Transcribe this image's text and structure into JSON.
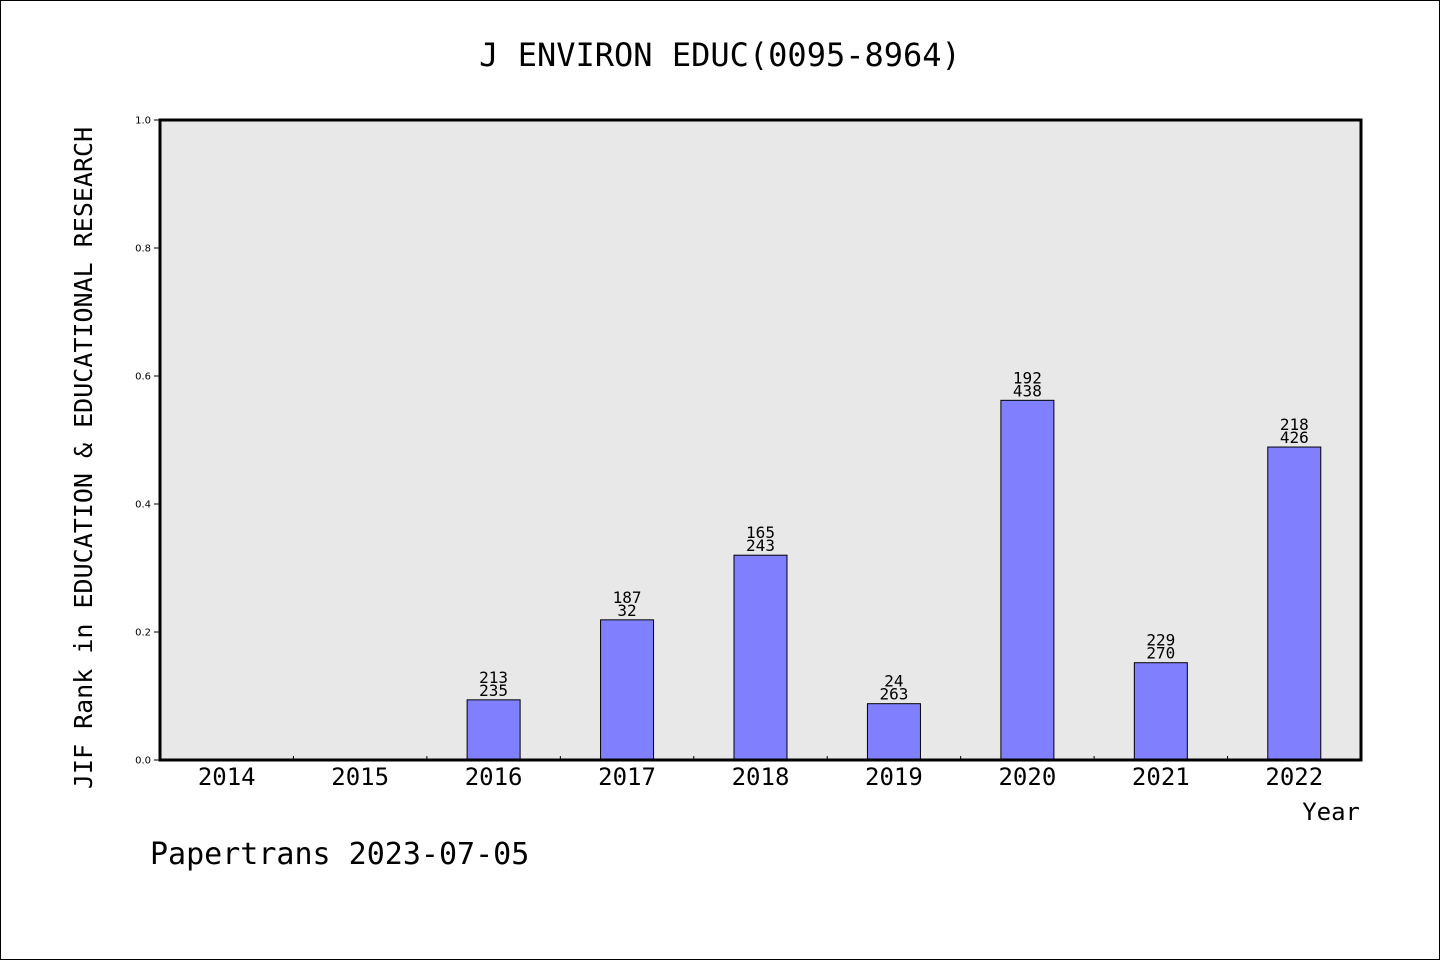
{
  "chart_data": {
    "type": "bar",
    "title": "J ENVIRON EDUC(0095-8964)",
    "xlabel": "Year",
    "ylabel": "JIF Rank in EDUCATION & EDUCATIONAL RESEARCH",
    "categories": [
      "2014",
      "2015",
      "2016",
      "2017",
      "2018",
      "2019",
      "2020",
      "2021",
      "2022"
    ],
    "values": [
      null,
      null,
      0.094,
      0.219,
      0.32,
      0.088,
      0.562,
      0.152,
      0.489
    ],
    "rank_labels": [
      "",
      "",
      "213",
      "187",
      "165",
      "24",
      "192",
      "229",
      "218"
    ],
    "total_labels": [
      "",
      "",
      "235",
      "32",
      "243",
      "263",
      "438",
      "270",
      "426"
    ],
    "ylim": [
      0,
      1.0
    ],
    "yticks": [
      "0.0",
      "0.2",
      "0.4",
      "0.6",
      "0.8",
      "1.0"
    ],
    "grid": false,
    "legend": "none",
    "bar_color": "#8080ff",
    "plot_background": "#e8e8e8"
  },
  "footer": "Papertrans 2023-07-05"
}
